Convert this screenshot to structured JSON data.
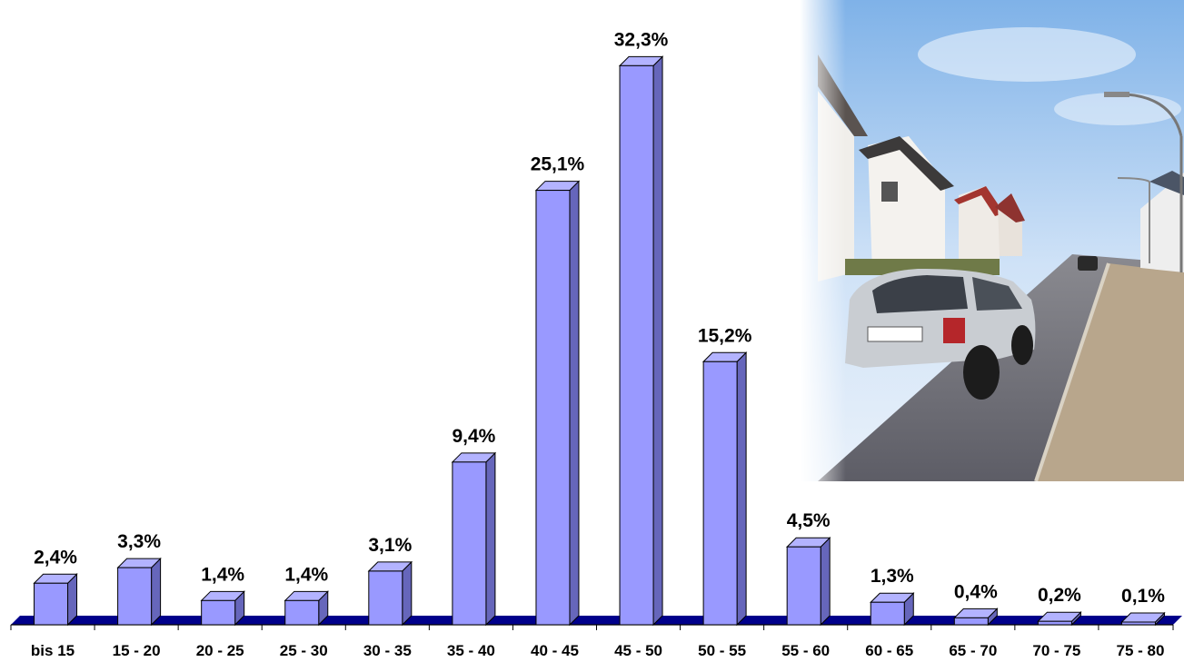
{
  "chart_data": {
    "type": "bar",
    "categories": [
      "bis 15",
      "15 - 20",
      "20 - 25",
      "25 - 30",
      "30 - 35",
      "35 - 40",
      "40 - 45",
      "45 - 50",
      "50 - 55",
      "55 - 60",
      "60 - 65",
      "65 - 70",
      "70 - 75",
      "75 - 80"
    ],
    "values": [
      2.4,
      3.3,
      1.4,
      1.4,
      3.1,
      9.4,
      25.1,
      32.3,
      15.2,
      4.5,
      1.3,
      0.4,
      0.2,
      0.1
    ],
    "data_labels": [
      "2,4%",
      "3,3%",
      "1,4%",
      "1,4%",
      "3,1%",
      "9,4%",
      "25,1%",
      "32,3%",
      "15,2%",
      "4,5%",
      "1,3%",
      "0,4%",
      "0,2%",
      "0,1%"
    ],
    "title": "",
    "xlabel": "",
    "ylabel": "",
    "ylim": [
      0,
      33
    ],
    "style": "3d-column",
    "grid": false,
    "legend": "none"
  },
  "colors": {
    "bar_front": "#9999ff",
    "bar_side": "#6666bb",
    "bar_top": "#b3b3ff",
    "floor": "#00008b"
  },
  "photo": {
    "description_icon": "street-photo-image"
  }
}
